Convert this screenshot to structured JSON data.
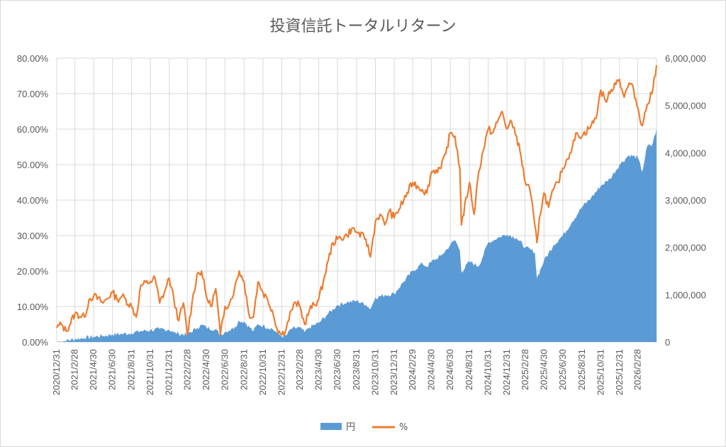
{
  "chart_data": {
    "type": "area+line",
    "title": "投資信託トータルリターン",
    "colors": {
      "area": "#5b9bd5",
      "line": "#ed7d31",
      "grid": "#d9d9d9",
      "text": "#595959"
    },
    "grid": true,
    "legend_position": "bottom",
    "x_dates": [
      "2020/12/31",
      "2021/2/28",
      "2021/4/30",
      "2021/6/30",
      "2021/8/31",
      "2021/10/31",
      "2021/12/31",
      "2022/2/28",
      "2022/4/30",
      "2022/6/30",
      "2022/8/31",
      "2022/10/31",
      "2022/12/31",
      "2023/2/28",
      "2023/4/30",
      "2023/6/30",
      "2023/8/31",
      "2023/10/31",
      "2023/12/31",
      "2024/2/29",
      "2024/4/30",
      "2024/6/30",
      "2024/8/31",
      "2024/10/31",
      "2024/12/31",
      "2025/2/28",
      "2025/4/30",
      "2025/6/30",
      "2025/8/31",
      "2025/10/31",
      "2025/12/31",
      "2026/2/28"
    ],
    "y_left": {
      "ticks": [
        "0.00%",
        "10.00%",
        "20.00%",
        "30.00%",
        "40.00%",
        "50.00%",
        "60.00%",
        "70.00%",
        "80.00%"
      ],
      "range": [
        0,
        80
      ]
    },
    "y_right": {
      "ticks": [
        "0",
        "1,000,000",
        "2,000,000",
        "3,000,000",
        "4,000,000",
        "5,000,000",
        "6,000,000"
      ],
      "range": [
        0,
        6000000
      ]
    },
    "series": [
      {
        "name": "円",
        "kind": "area",
        "axis": "right",
        "points": [
          [
            "2020/12/31",
            0
          ],
          [
            "2021/1/15",
            10000
          ],
          [
            "2021/2/28",
            60000
          ],
          [
            "2021/3/31",
            90000
          ],
          [
            "2021/4/30",
            110000
          ],
          [
            "2021/5/31",
            130000
          ],
          [
            "2021/6/30",
            160000
          ],
          [
            "2021/7/31",
            170000
          ],
          [
            "2021/8/31",
            190000
          ],
          [
            "2021/9/30",
            230000
          ],
          [
            "2021/10/31",
            250000
          ],
          [
            "2021/11/30",
            270000
          ],
          [
            "2021/12/31",
            260000
          ],
          [
            "2022/1/15",
            200000
          ],
          [
            "2022/1/31",
            170000
          ],
          [
            "2022/2/28",
            160000
          ],
          [
            "2022/3/31",
            300000
          ],
          [
            "2022/4/15",
            360000
          ],
          [
            "2022/4/30",
            310000
          ],
          [
            "2022/5/31",
            260000
          ],
          [
            "2022/6/15",
            150000
          ],
          [
            "2022/6/30",
            210000
          ],
          [
            "2022/7/31",
            310000
          ],
          [
            "2022/8/15",
            450000
          ],
          [
            "2022/8/31",
            430000
          ],
          [
            "2022/9/30",
            230000
          ],
          [
            "2022/10/15",
            380000
          ],
          [
            "2022/10/31",
            340000
          ],
          [
            "2022/11/30",
            280000
          ],
          [
            "2022/12/15",
            200000
          ],
          [
            "2022/12/31",
            120000
          ],
          [
            "2023/1/15",
            140000
          ],
          [
            "2023/1/31",
            280000
          ],
          [
            "2023/2/28",
            300000
          ],
          [
            "2023/3/15",
            210000
          ],
          [
            "2023/3/31",
            310000
          ],
          [
            "2023/4/30",
            400000
          ],
          [
            "2023/5/31",
            600000
          ],
          [
            "2023/6/30",
            780000
          ],
          [
            "2023/7/31",
            840000
          ],
          [
            "2023/8/31",
            870000
          ],
          [
            "2023/9/30",
            790000
          ],
          [
            "2023/10/15",
            700000
          ],
          [
            "2023/10/31",
            940000
          ],
          [
            "2023/11/30",
            990000
          ],
          [
            "2023/12/31",
            1020000
          ],
          [
            "2024/1/31",
            1280000
          ],
          [
            "2024/2/29",
            1500000
          ],
          [
            "2024/3/31",
            1660000
          ],
          [
            "2024/4/15",
            1590000
          ],
          [
            "2024/4/30",
            1700000
          ],
          [
            "2024/5/31",
            1820000
          ],
          [
            "2024/6/30",
            2050000
          ],
          [
            "2024/7/15",
            2160000
          ],
          [
            "2024/7/31",
            1940000
          ],
          [
            "2024/8/5",
            1480000
          ],
          [
            "2024/8/31",
            1700000
          ],
          [
            "2024/9/30",
            1600000
          ],
          [
            "2024/10/31",
            2100000
          ],
          [
            "2024/11/30",
            2200000
          ],
          [
            "2024/12/31",
            2280000
          ],
          [
            "2025/1/31",
            2200000
          ],
          [
            "2025/2/28",
            2000000
          ],
          [
            "2025/3/31",
            1900000
          ],
          [
            "2025/4/7",
            1350000
          ],
          [
            "2025/4/30",
            1720000
          ],
          [
            "2025/5/31",
            2050000
          ],
          [
            "2025/6/30",
            2250000
          ],
          [
            "2025/7/31",
            2550000
          ],
          [
            "2025/8/31",
            2850000
          ],
          [
            "2025/9/30",
            3050000
          ],
          [
            "2025/10/31",
            3300000
          ],
          [
            "2025/11/30",
            3450000
          ],
          [
            "2025/12/31",
            3750000
          ],
          [
            "2026/1/31",
            3950000
          ],
          [
            "2026/2/28",
            3900000
          ],
          [
            "2026/3/15",
            3600000
          ],
          [
            "2026/3/31",
            4150000
          ],
          [
            "2026/4/15",
            4150000
          ],
          [
            "2026/4/30",
            4500000
          ]
        ]
      },
      {
        "name": "%",
        "kind": "line",
        "axis": "left",
        "points": [
          [
            "2020/12/31",
            4
          ],
          [
            "2021/1/15",
            5
          ],
          [
            "2021/1/31",
            3
          ],
          [
            "2021/2/28",
            8
          ],
          [
            "2021/3/31",
            7
          ],
          [
            "2021/4/15",
            12
          ],
          [
            "2021/4/30",
            13
          ],
          [
            "2021/5/31",
            11
          ],
          [
            "2021/6/30",
            14
          ],
          [
            "2021/7/15",
            12
          ],
          [
            "2021/7/31",
            13
          ],
          [
            "2021/8/31",
            10
          ],
          [
            "2021/9/15",
            7
          ],
          [
            "2021/9/30",
            16
          ],
          [
            "2021/10/31",
            17
          ],
          [
            "2021/11/15",
            18
          ],
          [
            "2021/11/30",
            11
          ],
          [
            "2021/12/15",
            14
          ],
          [
            "2021/12/31",
            18
          ],
          [
            "2022/1/15",
            12
          ],
          [
            "2022/1/31",
            6
          ],
          [
            "2022/2/15",
            11
          ],
          [
            "2022/2/28",
            2
          ],
          [
            "2022/3/15",
            11
          ],
          [
            "2022/3/31",
            19
          ],
          [
            "2022/4/15",
            20
          ],
          [
            "2022/4/30",
            13
          ],
          [
            "2022/5/15",
            10
          ],
          [
            "2022/5/31",
            15
          ],
          [
            "2022/6/15",
            2
          ],
          [
            "2022/6/30",
            10
          ],
          [
            "2022/7/15",
            11
          ],
          [
            "2022/7/31",
            15
          ],
          [
            "2022/8/15",
            20
          ],
          [
            "2022/8/31",
            17
          ],
          [
            "2022/9/15",
            8
          ],
          [
            "2022/9/30",
            7
          ],
          [
            "2022/10/15",
            17
          ],
          [
            "2022/10/31",
            14
          ],
          [
            "2022/11/15",
            12
          ],
          [
            "2022/11/30",
            9
          ],
          [
            "2022/12/15",
            4
          ],
          [
            "2022/12/31",
            2
          ],
          [
            "2023/1/15",
            4
          ],
          [
            "2023/1/31",
            9
          ],
          [
            "2023/2/15",
            11
          ],
          [
            "2023/2/28",
            10
          ],
          [
            "2023/3/15",
            5
          ],
          [
            "2023/3/31",
            9
          ],
          [
            "2023/4/30",
            12
          ],
          [
            "2023/5/15",
            17
          ],
          [
            "2023/5/31",
            23
          ],
          [
            "2023/6/15",
            28
          ],
          [
            "2023/6/30",
            29
          ],
          [
            "2023/7/31",
            30
          ],
          [
            "2023/8/15",
            32
          ],
          [
            "2023/8/31",
            31
          ],
          [
            "2023/9/30",
            29
          ],
          [
            "2023/10/15",
            24
          ],
          [
            "2023/10/31",
            34
          ],
          [
            "2023/11/15",
            36
          ],
          [
            "2023/11/30",
            33
          ],
          [
            "2023/12/15",
            37
          ],
          [
            "2023/12/31",
            35
          ],
          [
            "2024/1/31",
            40
          ],
          [
            "2024/2/29",
            45
          ],
          [
            "2024/3/31",
            43
          ],
          [
            "2024/4/15",
            42
          ],
          [
            "2024/4/30",
            48
          ],
          [
            "2024/5/31",
            49
          ],
          [
            "2024/6/15",
            53
          ],
          [
            "2024/6/30",
            59
          ],
          [
            "2024/7/15",
            58
          ],
          [
            "2024/7/31",
            49
          ],
          [
            "2024/8/5",
            33
          ],
          [
            "2024/8/31",
            45
          ],
          [
            "2024/9/15",
            36
          ],
          [
            "2024/9/30",
            48
          ],
          [
            "2024/10/15",
            54
          ],
          [
            "2024/10/31",
            60
          ],
          [
            "2024/11/15",
            59
          ],
          [
            "2024/11/30",
            62
          ],
          [
            "2024/12/15",
            65
          ],
          [
            "2024/12/31",
            60
          ],
          [
            "2025/1/15",
            62
          ],
          [
            "2025/1/31",
            58
          ],
          [
            "2025/2/15",
            52
          ],
          [
            "2025/2/28",
            45
          ],
          [
            "2025/3/15",
            43
          ],
          [
            "2025/3/31",
            33
          ],
          [
            "2025/4/7",
            28
          ],
          [
            "2025/4/15",
            35
          ],
          [
            "2025/4/30",
            42
          ],
          [
            "2025/5/15",
            38
          ],
          [
            "2025/5/31",
            43
          ],
          [
            "2025/6/15",
            45
          ],
          [
            "2025/6/30",
            49
          ],
          [
            "2025/7/31",
            55
          ],
          [
            "2025/8/15",
            59
          ],
          [
            "2025/8/31",
            58
          ],
          [
            "2025/9/30",
            61
          ],
          [
            "2025/10/15",
            63
          ],
          [
            "2025/10/31",
            71
          ],
          [
            "2025/11/15",
            68
          ],
          [
            "2025/11/30",
            70
          ],
          [
            "2025/12/15",
            73
          ],
          [
            "2025/12/31",
            74
          ],
          [
            "2026/1/15",
            69
          ],
          [
            "2026/1/31",
            73
          ],
          [
            "2026/2/15",
            71
          ],
          [
            "2026/2/28",
            66
          ],
          [
            "2026/3/15",
            61
          ],
          [
            "2026/3/31",
            67
          ],
          [
            "2026/4/15",
            70
          ],
          [
            "2026/4/30",
            78
          ]
        ]
      }
    ]
  }
}
